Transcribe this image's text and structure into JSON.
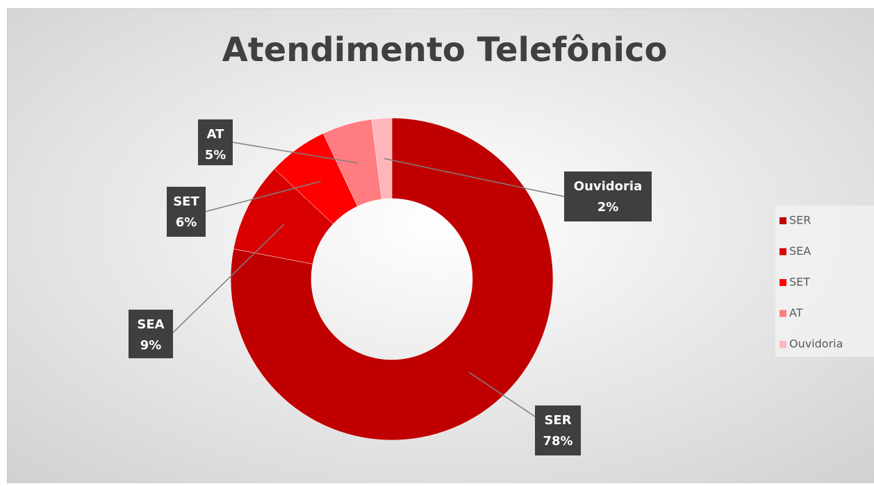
{
  "chart_data": {
    "type": "doughnut",
    "title": "Atendimento Telefônico",
    "categories": [
      "SER",
      "SEA",
      "SET",
      "AT",
      "Ouvidoria"
    ],
    "values": [
      78,
      9,
      6,
      5,
      2
    ],
    "value_labels": [
      "78%",
      "9%",
      "6%",
      "5%",
      "2%"
    ],
    "colors": [
      "#c00000",
      "#d80000",
      "#ff0000",
      "#ff7c80",
      "#ffb6ba"
    ],
    "legend": "right"
  }
}
